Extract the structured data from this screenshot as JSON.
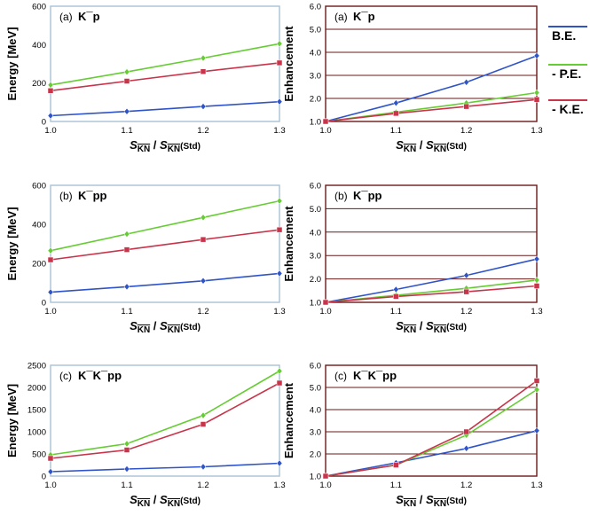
{
  "legend": {
    "entries": [
      {
        "label": "B.E.",
        "color": "#2f54c8"
      },
      {
        "label": "- P.E.",
        "color": "#66cc33"
      },
      {
        "label": "- K.E.",
        "color": "#c8344a"
      }
    ]
  },
  "chart_data": [
    {
      "type": "line",
      "panel_label": "(a)",
      "title": "K¯p",
      "xlabel": "S_KN / S_KN(Std)",
      "ylabel": "Energy  [MeV]",
      "x": [
        1.0,
        1.1,
        1.2,
        1.3
      ],
      "xticks": [
        "1.0",
        "1.1",
        "1.2",
        "1.3"
      ],
      "ylim": [
        0,
        600
      ],
      "yticks": [
        "0",
        "200",
        "400",
        "600"
      ],
      "ytick_values": [
        0,
        200,
        400,
        600
      ],
      "grid": false,
      "series": [
        {
          "name": "P.E.",
          "values": [
            190,
            258,
            330,
            405
          ]
        },
        {
          "name": "K.E.",
          "values": [
            160,
            210,
            260,
            305
          ]
        },
        {
          "name": "B.E.",
          "values": [
            30,
            52,
            78,
            103
          ]
        }
      ]
    },
    {
      "type": "line",
      "panel_label": "(a)",
      "title": "K¯p",
      "xlabel": "S_KN / S_KN(Std)",
      "ylabel": "Enhancement",
      "x": [
        1.0,
        1.1,
        1.2,
        1.3
      ],
      "xticks": [
        "1.0",
        "1.1",
        "1.2",
        "1.3"
      ],
      "ylim": [
        1.0,
        6.0
      ],
      "yticks": [
        "1.0",
        "2.0",
        "3.0",
        "4.0",
        "5.0",
        "6.0"
      ],
      "ytick_values": [
        1,
        2,
        3,
        4,
        5,
        6
      ],
      "grid": true,
      "series": [
        {
          "name": "B.E.",
          "values": [
            1.0,
            1.8,
            2.7,
            3.85
          ]
        },
        {
          "name": "P.E.",
          "values": [
            1.0,
            1.4,
            1.8,
            2.25
          ]
        },
        {
          "name": "K.E.",
          "values": [
            1.0,
            1.35,
            1.65,
            1.95
          ]
        }
      ]
    },
    {
      "type": "line",
      "panel_label": "(b)",
      "title": "K¯pp",
      "xlabel": "S_KN / S_KN(Std)",
      "ylabel": "Energy  [MeV]",
      "x": [
        1.0,
        1.1,
        1.2,
        1.3
      ],
      "xticks": [
        "1.0",
        "1.1",
        "1.2",
        "1.3"
      ],
      "ylim": [
        0,
        600
      ],
      "yticks": [
        "0",
        "200",
        "400",
        "600"
      ],
      "ytick_values": [
        0,
        200,
        400,
        600
      ],
      "grid": false,
      "series": [
        {
          "name": "P.E.",
          "values": [
            265,
            350,
            435,
            520
          ]
        },
        {
          "name": "K.E.",
          "values": [
            218,
            270,
            322,
            372
          ]
        },
        {
          "name": "B.E.",
          "values": [
            52,
            80,
            110,
            148
          ]
        }
      ]
    },
    {
      "type": "line",
      "panel_label": "(b)",
      "title": "K¯pp",
      "xlabel": "S_KN / S_KN(Std)",
      "ylabel": "Enhancement",
      "x": [
        1.0,
        1.1,
        1.2,
        1.3
      ],
      "xticks": [
        "1.0",
        "1.1",
        "1.2",
        "1.3"
      ],
      "ylim": [
        1.0,
        6.0
      ],
      "yticks": [
        "1.0",
        "2.0",
        "3.0",
        "4.0",
        "5.0",
        "6.0"
      ],
      "ytick_values": [
        1,
        2,
        3,
        4,
        5,
        6
      ],
      "grid": true,
      "series": [
        {
          "name": "B.E.",
          "values": [
            1.0,
            1.55,
            2.15,
            2.85
          ]
        },
        {
          "name": "P.E.",
          "values": [
            1.0,
            1.3,
            1.6,
            1.95
          ]
        },
        {
          "name": "K.E.",
          "values": [
            1.0,
            1.25,
            1.45,
            1.7
          ]
        }
      ]
    },
    {
      "type": "line",
      "panel_label": "(c)",
      "title": "K¯K¯pp",
      "xlabel": "S_KN / S_KN(Std)",
      "ylabel": "Energy  [MeV]",
      "x": [
        1.0,
        1.1,
        1.2,
        1.3
      ],
      "xticks": [
        "1.0",
        "1.1",
        "1.2",
        "1.3"
      ],
      "ylim": [
        0,
        2500
      ],
      "yticks": [
        "0",
        "500",
        "1000",
        "1500",
        "2000",
        "2500"
      ],
      "ytick_values": [
        0,
        500,
        1000,
        1500,
        2000,
        2500
      ],
      "grid": false,
      "series": [
        {
          "name": "P.E.",
          "values": [
            480,
            730,
            1370,
            2370
          ]
        },
        {
          "name": "K.E.",
          "values": [
            400,
            590,
            1170,
            2100
          ]
        },
        {
          "name": "B.E.",
          "values": [
            100,
            160,
            210,
            290
          ]
        }
      ]
    },
    {
      "type": "line",
      "panel_label": "(c)",
      "title": "K¯K¯pp",
      "xlabel": "S_KN / S_KN(Std)",
      "ylabel": "Enhancement",
      "x": [
        1.0,
        1.1,
        1.2,
        1.3
      ],
      "xticks": [
        "1.0",
        "1.1",
        "1.2",
        "1.3"
      ],
      "ylim": [
        1.0,
        6.0
      ],
      "yticks": [
        "1.0",
        "2.0",
        "3.0",
        "4.0",
        "5.0",
        "6.0"
      ],
      "ytick_values": [
        1,
        2,
        3,
        4,
        5,
        6
      ],
      "grid": true,
      "series": [
        {
          "name": "B.E.",
          "values": [
            1.0,
            1.6,
            2.25,
            3.05
          ]
        },
        {
          "name": "P.E.",
          "values": [
            1.0,
            1.5,
            2.85,
            4.9
          ]
        },
        {
          "name": "K.E.",
          "values": [
            1.0,
            1.5,
            3.0,
            5.3
          ]
        }
      ]
    }
  ]
}
